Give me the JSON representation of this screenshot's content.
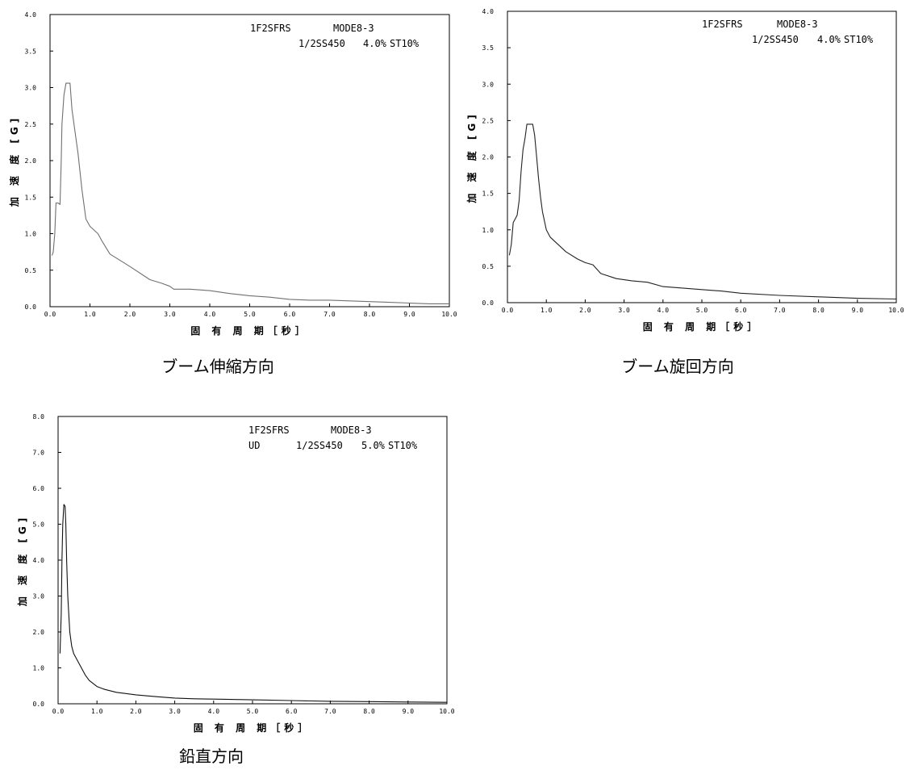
{
  "chart_data": [
    {
      "type": "line",
      "annotations": [
        "1F2SFRS",
        "MODE8-3",
        "1/2SS450",
        "4.0%",
        "ST10%"
      ],
      "xlabel": "固 有 周 期［秒］",
      "ylabel": "加 速 度 [G]",
      "caption": "ブーム伸縮方向",
      "xlim": [
        0,
        10
      ],
      "ylim": [
        0,
        4
      ],
      "x_ticks": [
        "0.0",
        "1.0",
        "2.0",
        "3.0",
        "4.0",
        "5.0",
        "6.0",
        "7.0",
        "8.0",
        "9.0",
        "10.0"
      ],
      "y_ticks": [
        "0.0",
        "0.5",
        "1.0",
        "1.5",
        "2.0",
        "2.5",
        "3.0",
        "3.5",
        "4.0"
      ],
      "grid": false,
      "series": [
        {
          "color": "#707070",
          "x": [
            0.05,
            0.08,
            0.12,
            0.15,
            0.2,
            0.25,
            0.28,
            0.3,
            0.35,
            0.4,
            0.45,
            0.5,
            0.55,
            0.6,
            0.65,
            0.7,
            0.8,
            0.9,
            1.0,
            1.1,
            1.2,
            1.3,
            1.5,
            2.0,
            2.5,
            2.8,
            3.0,
            3.1,
            3.5,
            4.0,
            4.5,
            5.0,
            5.5,
            6.0,
            6.5,
            7.0,
            7.5,
            8.0,
            8.5,
            9.0,
            9.5,
            10.0
          ],
          "y": [
            0.7,
            0.75,
            1.0,
            1.42,
            1.42,
            1.4,
            2.0,
            2.5,
            2.9,
            3.06,
            3.06,
            3.06,
            2.7,
            2.5,
            2.3,
            2.1,
            1.6,
            1.2,
            1.1,
            1.05,
            1.0,
            0.9,
            0.72,
            0.55,
            0.37,
            0.32,
            0.28,
            0.24,
            0.24,
            0.22,
            0.18,
            0.15,
            0.13,
            0.1,
            0.09,
            0.09,
            0.08,
            0.07,
            0.06,
            0.05,
            0.04,
            0.04
          ]
        }
      ]
    },
    {
      "type": "line",
      "annotations": [
        "1F2SFRS",
        "MODE8-3",
        "1/2SS450",
        "4.0%",
        "ST10%"
      ],
      "xlabel": "固 有 周 期［秒］",
      "ylabel": "加 速 度 [G]",
      "caption": "ブーム旋回方向",
      "xlim": [
        0,
        10
      ],
      "ylim": [
        0,
        4
      ],
      "x_ticks": [
        "0.0",
        "1.0",
        "2.0",
        "3.0",
        "4.0",
        "5.0",
        "6.0",
        "7.0",
        "8.0",
        "9.0",
        "10.0"
      ],
      "y_ticks": [
        "0.0",
        "0.5",
        "1.0",
        "1.5",
        "2.0",
        "2.5",
        "3.0",
        "3.5",
        "4.0"
      ],
      "grid": false,
      "series": [
        {
          "color": "#222222",
          "x": [
            0.05,
            0.1,
            0.15,
            0.2,
            0.25,
            0.3,
            0.35,
            0.4,
            0.45,
            0.5,
            0.55,
            0.6,
            0.65,
            0.7,
            0.75,
            0.8,
            0.85,
            0.9,
            1.0,
            1.1,
            1.2,
            1.3,
            1.5,
            1.8,
            2.0,
            2.2,
            2.4,
            2.8,
            3.2,
            3.6,
            4.0,
            4.5,
            5.0,
            5.5,
            6.0,
            7.0,
            8.0,
            9.0,
            10.0
          ],
          "y": [
            0.65,
            0.8,
            1.1,
            1.15,
            1.2,
            1.4,
            1.8,
            2.1,
            2.25,
            2.45,
            2.45,
            2.45,
            2.45,
            2.3,
            2.0,
            1.7,
            1.45,
            1.25,
            1.0,
            0.9,
            0.85,
            0.8,
            0.7,
            0.6,
            0.55,
            0.52,
            0.4,
            0.33,
            0.3,
            0.28,
            0.22,
            0.2,
            0.18,
            0.16,
            0.13,
            0.1,
            0.08,
            0.06,
            0.05
          ]
        }
      ]
    },
    {
      "type": "line",
      "annotations": [
        "1F2SFRS",
        "MODE8-3",
        "UD",
        "1/2SS450",
        "5.0%",
        "ST10%"
      ],
      "xlabel": "固 有 周 期［秒］",
      "ylabel": "加 速 度 [G]",
      "caption": "鉛直方向",
      "xlim": [
        0,
        10
      ],
      "ylim": [
        0,
        8
      ],
      "x_ticks": [
        "0.0",
        "1.0",
        "2.0",
        "3.0",
        "4.0",
        "5.0",
        "6.0",
        "7.0",
        "8.0",
        "9.0",
        "10.0"
      ],
      "y_ticks": [
        "0.0",
        "1.0",
        "2.0",
        "3.0",
        "4.0",
        "5.0",
        "6.0",
        "7.0",
        "8.0"
      ],
      "grid": false,
      "series": [
        {
          "color": "#111111",
          "x": [
            0.05,
            0.08,
            0.1,
            0.12,
            0.15,
            0.18,
            0.2,
            0.22,
            0.25,
            0.3,
            0.35,
            0.4,
            0.5,
            0.6,
            0.7,
            0.8,
            1.0,
            1.2,
            1.5,
            2.0,
            2.5,
            3.0,
            3.5,
            4.0,
            5.0,
            6.0,
            7.0,
            8.0,
            9.0,
            10.0
          ],
          "y": [
            1.4,
            2.5,
            4.0,
            5.0,
            5.55,
            5.5,
            5.0,
            4.0,
            3.0,
            2.0,
            1.6,
            1.4,
            1.2,
            1.0,
            0.8,
            0.65,
            0.48,
            0.4,
            0.32,
            0.25,
            0.2,
            0.16,
            0.14,
            0.13,
            0.11,
            0.09,
            0.07,
            0.06,
            0.05,
            0.04
          ]
        }
      ]
    }
  ]
}
